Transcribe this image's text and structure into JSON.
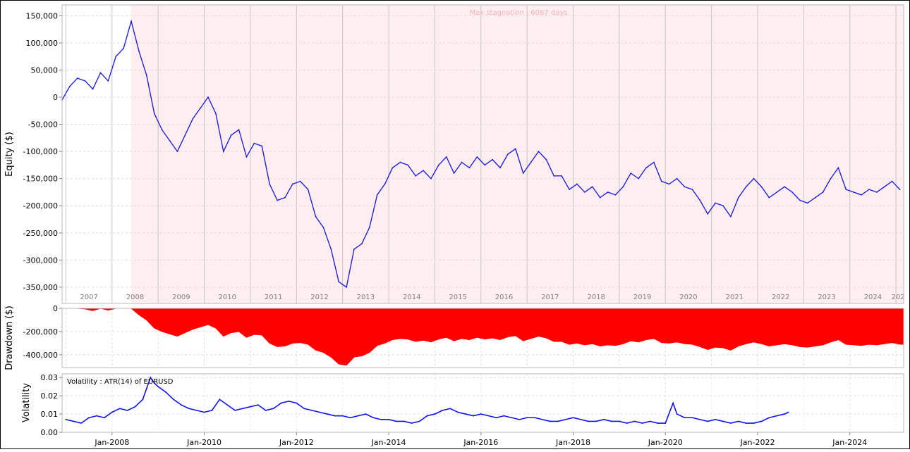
{
  "chart_data": [
    {
      "type": "line",
      "ylabel": "Equity ($)",
      "ylim": [
        -380000,
        170000
      ],
      "yticks": [
        150000,
        100000,
        50000,
        0,
        -50000,
        -100000,
        -150000,
        -200000,
        -250000,
        -300000,
        -350000
      ],
      "ytick_labels": [
        "150,000",
        "100,000",
        "50,000",
        "0",
        "-50,000",
        "-100,000",
        "-150,000",
        "-200,000",
        "-250,000",
        "-300,000",
        "-350,000"
      ],
      "x_range": [
        "2006-12",
        "2025-03"
      ],
      "year_labels": [
        "2007",
        "2008",
        "2009",
        "2010",
        "2011",
        "2012",
        "2013",
        "2014",
        "2015",
        "2016",
        "2017",
        "2018",
        "2019",
        "2020",
        "2021",
        "2022",
        "2023",
        "2024",
        "202"
      ],
      "annotation": "Max stagnation : 6087 days",
      "stagnation_start": "2008-06",
      "line_color": "#2222dd",
      "shade_color": "#ffeef0",
      "grid": true,
      "x": [
        "2006-12",
        "2007-02",
        "2007-04",
        "2007-06",
        "2007-08",
        "2007-10",
        "2007-12",
        "2008-02",
        "2008-04",
        "2008-06",
        "2008-08",
        "2008-10",
        "2008-12",
        "2009-02",
        "2009-04",
        "2009-06",
        "2009-08",
        "2009-10",
        "2009-12",
        "2010-02",
        "2010-04",
        "2010-06",
        "2010-08",
        "2010-10",
        "2010-12",
        "2011-02",
        "2011-04",
        "2011-06",
        "2011-08",
        "2011-10",
        "2011-12",
        "2012-02",
        "2012-04",
        "2012-06",
        "2012-08",
        "2012-10",
        "2012-12",
        "2013-02",
        "2013-04",
        "2013-06",
        "2013-08",
        "2013-10",
        "2013-12",
        "2014-02",
        "2014-04",
        "2014-06",
        "2014-08",
        "2014-10",
        "2014-12",
        "2015-02",
        "2015-04",
        "2015-06",
        "2015-08",
        "2015-10",
        "2015-12",
        "2016-02",
        "2016-04",
        "2016-06",
        "2016-08",
        "2016-10",
        "2016-12",
        "2017-02",
        "2017-04",
        "2017-06",
        "2017-08",
        "2017-10",
        "2017-12",
        "2018-02",
        "2018-04",
        "2018-06",
        "2018-08",
        "2018-10",
        "2018-12",
        "2019-02",
        "2019-04",
        "2019-06",
        "2019-08",
        "2019-10",
        "2019-12",
        "2020-02",
        "2020-04",
        "2020-06",
        "2020-08",
        "2020-10",
        "2020-12",
        "2021-02",
        "2021-04",
        "2021-06",
        "2021-08",
        "2021-10",
        "2021-12",
        "2022-02",
        "2022-04",
        "2022-06",
        "2022-08",
        "2022-10",
        "2022-12",
        "2023-02",
        "2023-04",
        "2023-06",
        "2023-08",
        "2023-10",
        "2023-12",
        "2024-02",
        "2024-04",
        "2024-06",
        "2024-08",
        "2024-10",
        "2024-12",
        "2025-02"
      ],
      "values": [
        -5000,
        20000,
        35000,
        30000,
        15000,
        45000,
        30000,
        75000,
        90000,
        140000,
        85000,
        40000,
        -30000,
        -60000,
        -80000,
        -100000,
        -70000,
        -40000,
        -20000,
        0,
        -30000,
        -100000,
        -70000,
        -60000,
        -110000,
        -85000,
        -90000,
        -160000,
        -190000,
        -185000,
        -160000,
        -155000,
        -170000,
        -220000,
        -240000,
        -280000,
        -340000,
        -350000,
        -280000,
        -270000,
        -240000,
        -180000,
        -160000,
        -130000,
        -120000,
        -125000,
        -145000,
        -135000,
        -150000,
        -125000,
        -110000,
        -140000,
        -120000,
        -130000,
        -110000,
        -125000,
        -115000,
        -130000,
        -105000,
        -95000,
        -140000,
        -120000,
        -100000,
        -115000,
        -145000,
        -145000,
        -170000,
        -160000,
        -175000,
        -165000,
        -185000,
        -175000,
        -180000,
        -165000,
        -140000,
        -150000,
        -130000,
        -120000,
        -155000,
        -160000,
        -150000,
        -165000,
        -170000,
        -190000,
        -215000,
        -195000,
        -200000,
        -220000,
        -185000,
        -165000,
        -150000,
        -165000,
        -185000,
        -175000,
        -165000,
        -175000,
        -190000,
        -195000,
        -185000,
        -175000,
        -150000,
        -130000,
        -170000,
        -175000,
        -180000,
        -170000,
        -175000,
        -165000,
        -155000,
        -170000
      ]
    },
    {
      "type": "area",
      "ylabel": "Drawdown ($)",
      "ylim": [
        -510000,
        0
      ],
      "yticks": [
        0,
        -200000,
        -400000
      ],
      "ytick_labels": [
        "0",
        "-200,000",
        "-400,000"
      ],
      "fill_color": "#ff0000",
      "grid": true
    },
    {
      "type": "line",
      "ylabel": "Volatility",
      "legend": "Volatility : ATR(14) of EURUSD",
      "ylim": [
        0,
        0.032
      ],
      "yticks": [
        0.0,
        0.01,
        0.02,
        0.03
      ],
      "ytick_labels": [
        "0.00",
        "0.01",
        "0.02",
        "0.03"
      ],
      "xtick_labels": [
        "Jan-2008",
        "Jan-2010",
        "Jan-2012",
        "Jan-2014",
        "Jan-2016",
        "Jan-2018",
        "Jan-2020",
        "Jan-2022",
        "Jan-2024"
      ],
      "xtick_dates": [
        "2008-01",
        "2010-01",
        "2012-01",
        "2014-01",
        "2016-01",
        "2018-01",
        "2020-01",
        "2022-01",
        "2024-01"
      ],
      "line_color": "#1111ee",
      "grid": true,
      "x": [
        "2007-01",
        "2007-03",
        "2007-05",
        "2007-07",
        "2007-09",
        "2007-11",
        "2008-01",
        "2008-03",
        "2008-05",
        "2008-07",
        "2008-09",
        "2008-10",
        "2008-11",
        "2008-12",
        "2009-01",
        "2009-03",
        "2009-05",
        "2009-07",
        "2009-09",
        "2009-11",
        "2010-01",
        "2010-03",
        "2010-05",
        "2010-07",
        "2010-09",
        "2010-11",
        "2011-01",
        "2011-03",
        "2011-05",
        "2011-07",
        "2011-09",
        "2011-11",
        "2012-01",
        "2012-03",
        "2012-05",
        "2012-07",
        "2012-09",
        "2012-11",
        "2013-01",
        "2013-03",
        "2013-05",
        "2013-07",
        "2013-09",
        "2013-11",
        "2014-01",
        "2014-03",
        "2014-05",
        "2014-07",
        "2014-09",
        "2014-11",
        "2015-01",
        "2015-03",
        "2015-05",
        "2015-07",
        "2015-09",
        "2015-11",
        "2016-01",
        "2016-03",
        "2016-05",
        "2016-07",
        "2016-09",
        "2016-11",
        "2017-01",
        "2017-03",
        "2017-05",
        "2017-07",
        "2017-09",
        "2017-11",
        "2018-01",
        "2018-03",
        "2018-05",
        "2018-07",
        "2018-09",
        "2018-11",
        "2019-01",
        "2019-03",
        "2019-05",
        "2019-07",
        "2019-09",
        "2019-11",
        "2020-01",
        "2020-03",
        "2020-04",
        "2020-06",
        "2020-08",
        "2020-10",
        "2020-12",
        "2021-02",
        "2021-04",
        "2021-06",
        "2021-08",
        "2021-10",
        "2021-12",
        "2022-02",
        "2022-04",
        "2022-06",
        "2022-08",
        "2022-09"
      ],
      "values": [
        0.007,
        0.006,
        0.005,
        0.008,
        0.009,
        0.008,
        0.011,
        0.013,
        0.012,
        0.014,
        0.018,
        0.024,
        0.03,
        0.027,
        0.025,
        0.022,
        0.018,
        0.015,
        0.013,
        0.012,
        0.011,
        0.012,
        0.018,
        0.015,
        0.012,
        0.013,
        0.014,
        0.015,
        0.012,
        0.013,
        0.016,
        0.017,
        0.016,
        0.013,
        0.012,
        0.011,
        0.01,
        0.009,
        0.009,
        0.008,
        0.009,
        0.01,
        0.008,
        0.007,
        0.007,
        0.006,
        0.006,
        0.005,
        0.006,
        0.009,
        0.01,
        0.012,
        0.013,
        0.011,
        0.01,
        0.009,
        0.01,
        0.009,
        0.008,
        0.009,
        0.008,
        0.007,
        0.008,
        0.008,
        0.007,
        0.006,
        0.006,
        0.007,
        0.008,
        0.007,
        0.006,
        0.006,
        0.007,
        0.006,
        0.006,
        0.005,
        0.006,
        0.005,
        0.006,
        0.005,
        0.005,
        0.016,
        0.01,
        0.008,
        0.008,
        0.007,
        0.006,
        0.007,
        0.006,
        0.005,
        0.006,
        0.005,
        0.005,
        0.006,
        0.008,
        0.009,
        0.01,
        0.011
      ]
    }
  ]
}
